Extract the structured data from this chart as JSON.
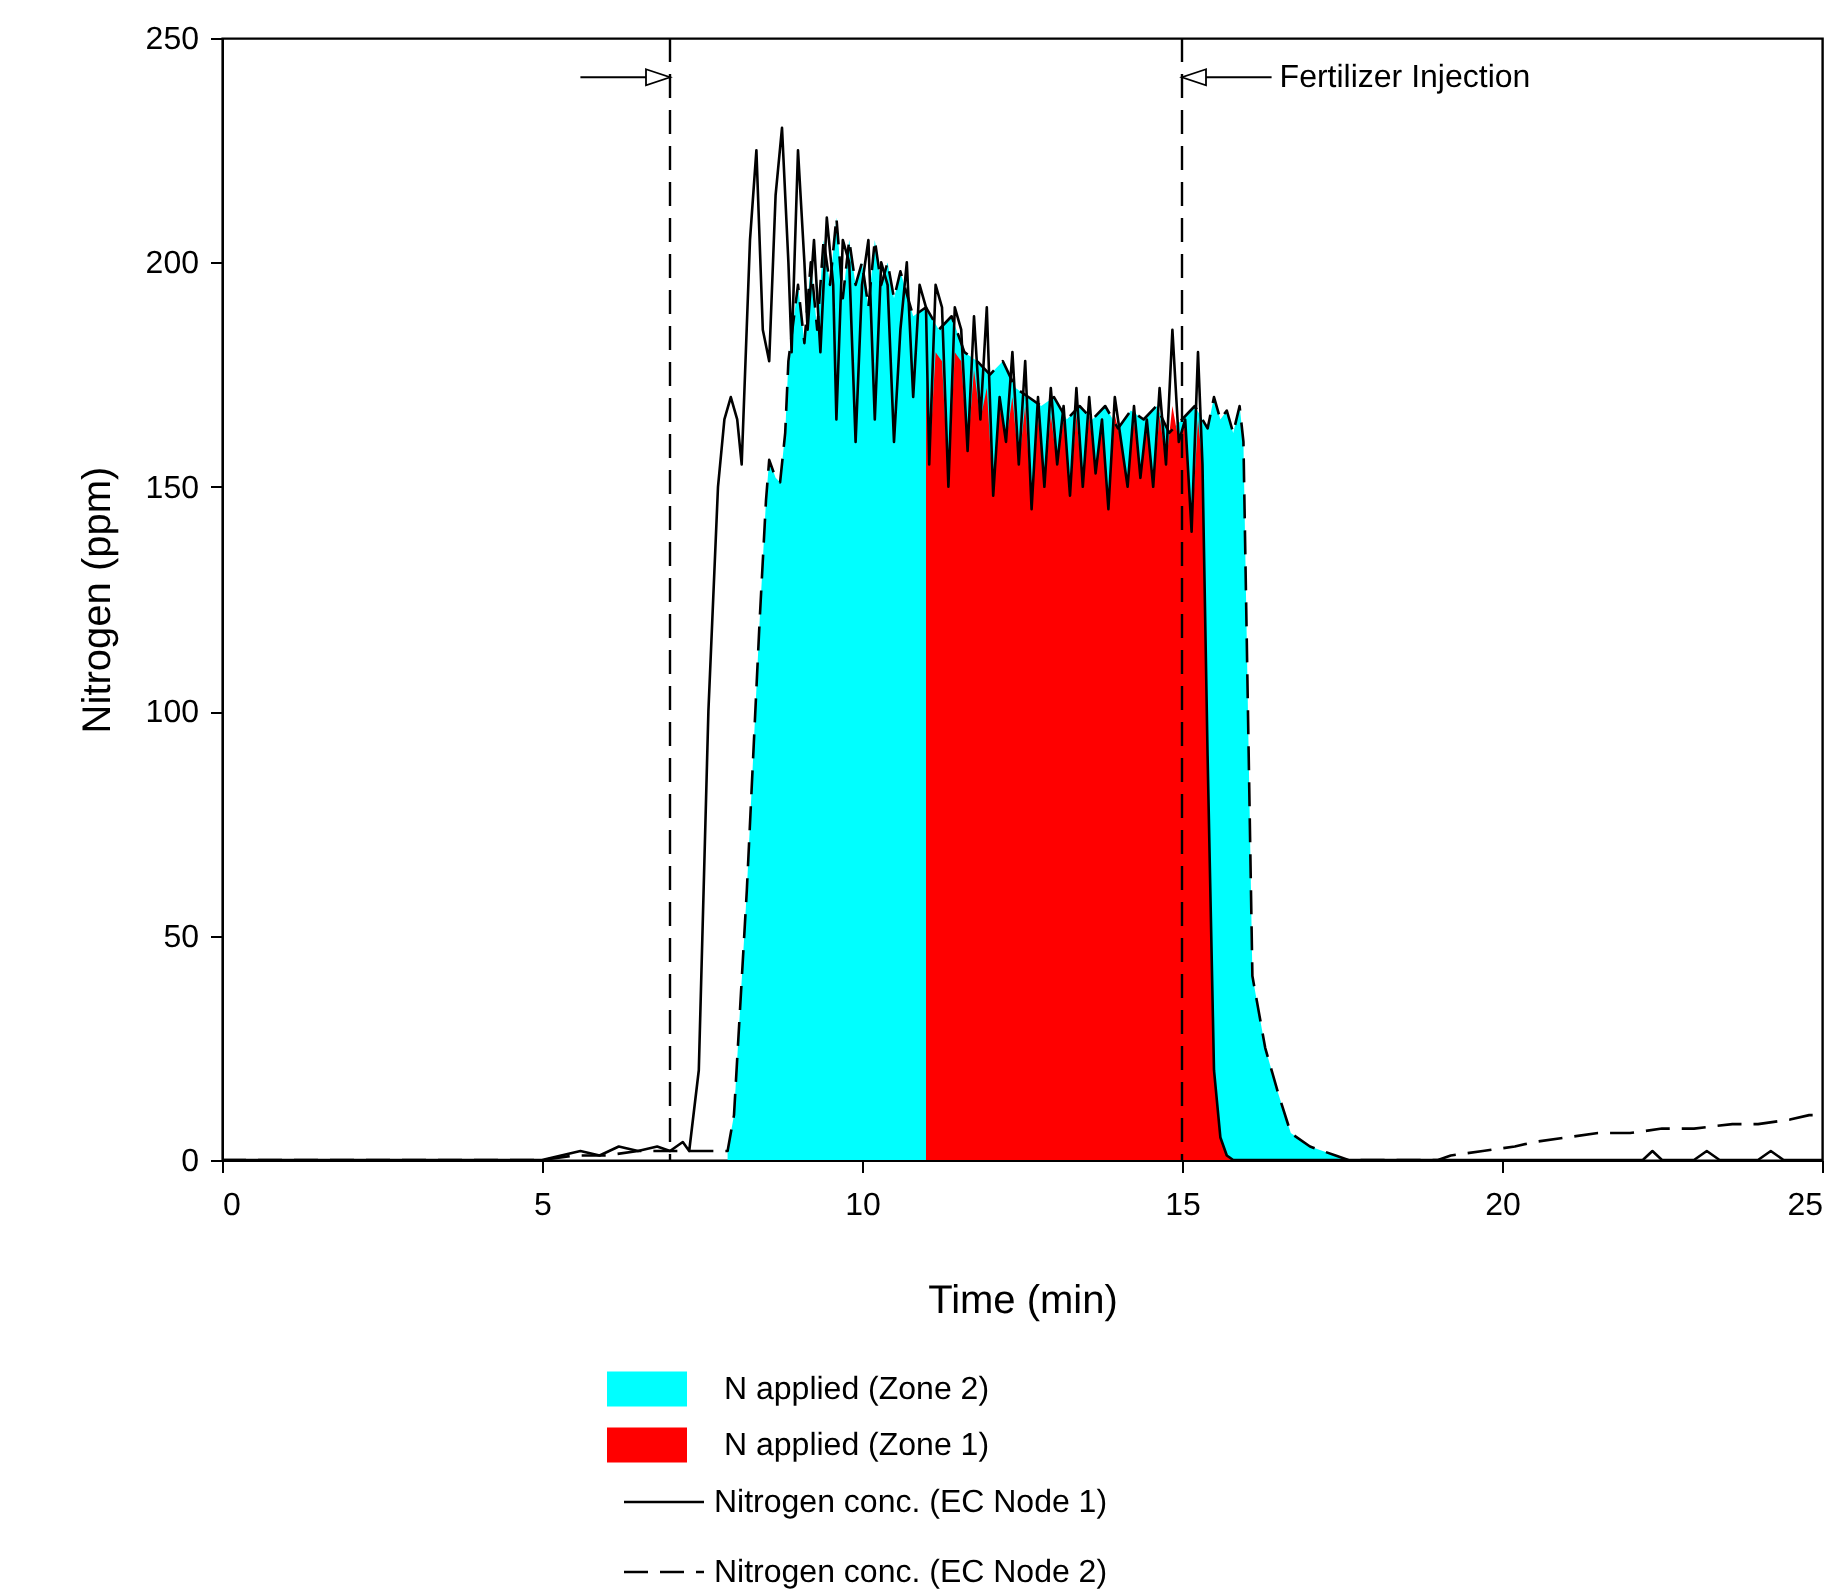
{
  "chart_data": {
    "type": "line",
    "xlabel": "Time (min)",
    "ylabel": "Nitrogen (ppm)",
    "xlim": [
      0,
      25
    ],
    "xticks": [
      0,
      5,
      10,
      15,
      20,
      25
    ],
    "ylim": [
      0,
      250
    ],
    "yticks": [
      0,
      50,
      100,
      150,
      200,
      250
    ],
    "grid": false,
    "legend": "bottom",
    "series": [
      {
        "name": "N applied (Zone 2)",
        "type": "area",
        "color": "#00ffff",
        "x": [
          7.9,
          8.0,
          8.2,
          8.4,
          8.5,
          8.55,
          8.65,
          8.72,
          8.8,
          8.85,
          9.0,
          9.1,
          9.2,
          9.3,
          9.4,
          9.5,
          9.6,
          9.7,
          9.8,
          9.9,
          10.0,
          10.1,
          10.2,
          10.3,
          10.4,
          10.5,
          10.6,
          10.8,
          11.0,
          11.2,
          11.4,
          11.6,
          11.8,
          12.0,
          12.2,
          12.4,
          12.6,
          12.8,
          13.0,
          13.2,
          13.4,
          13.6,
          13.8,
          14.0,
          14.2,
          14.4,
          14.6,
          14.8,
          15.0,
          15.2,
          15.4,
          15.5,
          15.6,
          15.7,
          15.8,
          15.9,
          15.96,
          16.1,
          16.3,
          16.5,
          16.7,
          17.0,
          17.4,
          17.6
        ],
        "values": [
          2,
          10,
          60,
          120,
          147,
          156,
          152,
          151,
          162,
          178,
          195,
          182,
          200,
          185,
          205,
          195,
          210,
          192,
          205,
          195,
          200,
          190,
          205,
          195,
          200,
          192,
          198,
          188,
          190,
          185,
          188,
          180,
          178,
          175,
          178,
          172,
          170,
          168,
          170,
          165,
          168,
          165,
          168,
          163,
          167,
          165,
          168,
          162,
          165,
          168,
          163,
          170,
          165,
          167,
          162,
          168,
          160,
          41,
          25,
          15,
          6,
          3,
          1,
          0
        ]
      },
      {
        "name": "N applied (Zone 1)",
        "type": "area",
        "color": "#ff0000",
        "x": [
          11.0,
          11.05,
          11.15,
          11.25,
          11.35,
          11.45,
          11.55,
          11.65,
          11.75,
          11.85,
          11.95,
          12.05,
          12.15,
          12.25,
          12.35,
          12.45,
          12.55,
          12.65,
          12.75,
          12.85,
          12.95,
          13.05,
          13.15,
          13.25,
          13.35,
          13.45,
          13.55,
          13.65,
          13.75,
          13.85,
          13.95,
          14.05,
          14.15,
          14.25,
          14.35,
          14.45,
          14.55,
          14.65,
          14.75,
          14.85,
          14.95,
          15.05,
          15.15,
          15.25,
          15.32,
          15.4,
          15.5,
          15.6,
          15.7,
          15.8
        ],
        "values": [
          175,
          155,
          180,
          178,
          150,
          180,
          178,
          158,
          176,
          165,
          172,
          148,
          168,
          160,
          170,
          155,
          168,
          145,
          166,
          150,
          166,
          155,
          165,
          148,
          166,
          150,
          166,
          153,
          164,
          145,
          166,
          160,
          150,
          165,
          152,
          164,
          150,
          166,
          155,
          168,
          160,
          164,
          140,
          165,
          155,
          90,
          20,
          5,
          1,
          0
        ]
      },
      {
        "name": "Nitrogen conc. (EC Node 1)",
        "color": "#000000",
        "line_style": "solid",
        "x": [
          0,
          5,
          5.3,
          5.6,
          5.9,
          6.2,
          6.5,
          6.8,
          7.0,
          7.2,
          7.3,
          7.45,
          7.6,
          7.75,
          7.85,
          7.95,
          8.05,
          8.12,
          8.25,
          8.35,
          8.45,
          8.55,
          8.65,
          8.75,
          8.85,
          8.9,
          9.0,
          9.1,
          9.15,
          9.25,
          9.35,
          9.45,
          9.55,
          9.6,
          9.7,
          9.8,
          9.9,
          10.0,
          10.1,
          10.2,
          10.3,
          10.4,
          10.5,
          10.6,
          10.7,
          10.8,
          10.9,
          11.0,
          11.05,
          11.15,
          11.25,
          11.35,
          11.45,
          11.55,
          11.65,
          11.75,
          11.85,
          11.95,
          12.05,
          12.15,
          12.25,
          12.35,
          12.45,
          12.55,
          12.65,
          12.75,
          12.85,
          12.95,
          13.05,
          13.15,
          13.25,
          13.35,
          13.45,
          13.55,
          13.65,
          13.75,
          13.85,
          13.95,
          14.05,
          14.15,
          14.25,
          14.35,
          14.45,
          14.55,
          14.65,
          14.75,
          14.85,
          14.95,
          15.05,
          15.15,
          15.25,
          15.32,
          15.4,
          15.5,
          15.6,
          15.7,
          15.8,
          22.2,
          22.35,
          22.5,
          23.0,
          23.2,
          23.4,
          24.0,
          24.2,
          24.4,
          25
        ],
        "values": [
          0,
          0,
          1,
          2,
          1,
          3,
          2,
          3,
          2,
          4,
          2,
          20,
          100,
          150,
          165,
          170,
          165,
          155,
          205,
          225,
          185,
          178,
          215,
          230,
          200,
          180,
          225,
          200,
          185,
          205,
          180,
          210,
          195,
          165,
          205,
          200,
          160,
          195,
          205,
          165,
          200,
          195,
          160,
          185,
          200,
          170,
          195,
          190,
          155,
          195,
          190,
          150,
          190,
          185,
          158,
          188,
          165,
          190,
          148,
          170,
          160,
          180,
          155,
          178,
          145,
          170,
          150,
          172,
          155,
          168,
          148,
          172,
          150,
          170,
          153,
          165,
          145,
          170,
          160,
          150,
          168,
          152,
          165,
          150,
          172,
          155,
          185,
          160,
          165,
          140,
          180,
          155,
          90,
          20,
          5,
          1,
          0,
          0,
          2,
          0,
          0,
          2,
          0,
          0,
          2,
          0,
          0
        ]
      },
      {
        "name": "Nitrogen conc. (EC Node 2)",
        "color": "#000000",
        "line_style": "dashed",
        "x": [
          0,
          5,
          5.5,
          6,
          6.5,
          7,
          7.5,
          7.9,
          8.0,
          8.2,
          8.4,
          8.5,
          8.55,
          8.65,
          8.72,
          8.8,
          8.85,
          9.0,
          9.1,
          9.2,
          9.3,
          9.4,
          9.5,
          9.6,
          9.7,
          9.8,
          9.9,
          10.0,
          10.1,
          10.2,
          10.3,
          10.4,
          10.5,
          10.6,
          10.8,
          11.0,
          11.2,
          11.4,
          11.6,
          11.8,
          12.0,
          12.2,
          12.4,
          12.6,
          12.8,
          13.0,
          13.2,
          13.4,
          13.6,
          13.8,
          14.0,
          14.2,
          14.4,
          14.6,
          14.8,
          15.0,
          15.2,
          15.4,
          15.5,
          15.6,
          15.7,
          15.8,
          15.9,
          15.96,
          16.1,
          16.3,
          16.5,
          16.7,
          17.0,
          17.4,
          17.6,
          19,
          19.2,
          19.7,
          20.2,
          20.5,
          21.0,
          21.5,
          22.0,
          22.5,
          23.0,
          23.6,
          24.0,
          24.5,
          24.8,
          25
        ],
        "values": [
          0,
          0,
          1,
          1,
          2,
          2,
          2,
          2,
          10,
          60,
          120,
          147,
          156,
          152,
          151,
          162,
          178,
          195,
          182,
          200,
          185,
          205,
          195,
          210,
          192,
          205,
          195,
          200,
          190,
          205,
          195,
          200,
          192,
          198,
          188,
          190,
          185,
          188,
          180,
          178,
          175,
          178,
          172,
          170,
          168,
          170,
          165,
          168,
          165,
          168,
          163,
          167,
          165,
          168,
          162,
          165,
          168,
          163,
          170,
          165,
          167,
          162,
          168,
          160,
          41,
          25,
          15,
          6,
          3,
          1,
          0,
          0,
          1,
          2,
          3,
          4,
          5,
          6,
          6,
          7,
          7,
          8,
          8,
          9,
          10,
          10
        ]
      }
    ],
    "ref_lines": [
      {
        "axis": "x",
        "value": 7,
        "label": null,
        "line_style": "dashed",
        "color": "#000000"
      },
      {
        "axis": "x",
        "value": 15,
        "label": "Fertilizer Injection",
        "line_style": "dashed",
        "color": "#000000"
      }
    ]
  }
}
